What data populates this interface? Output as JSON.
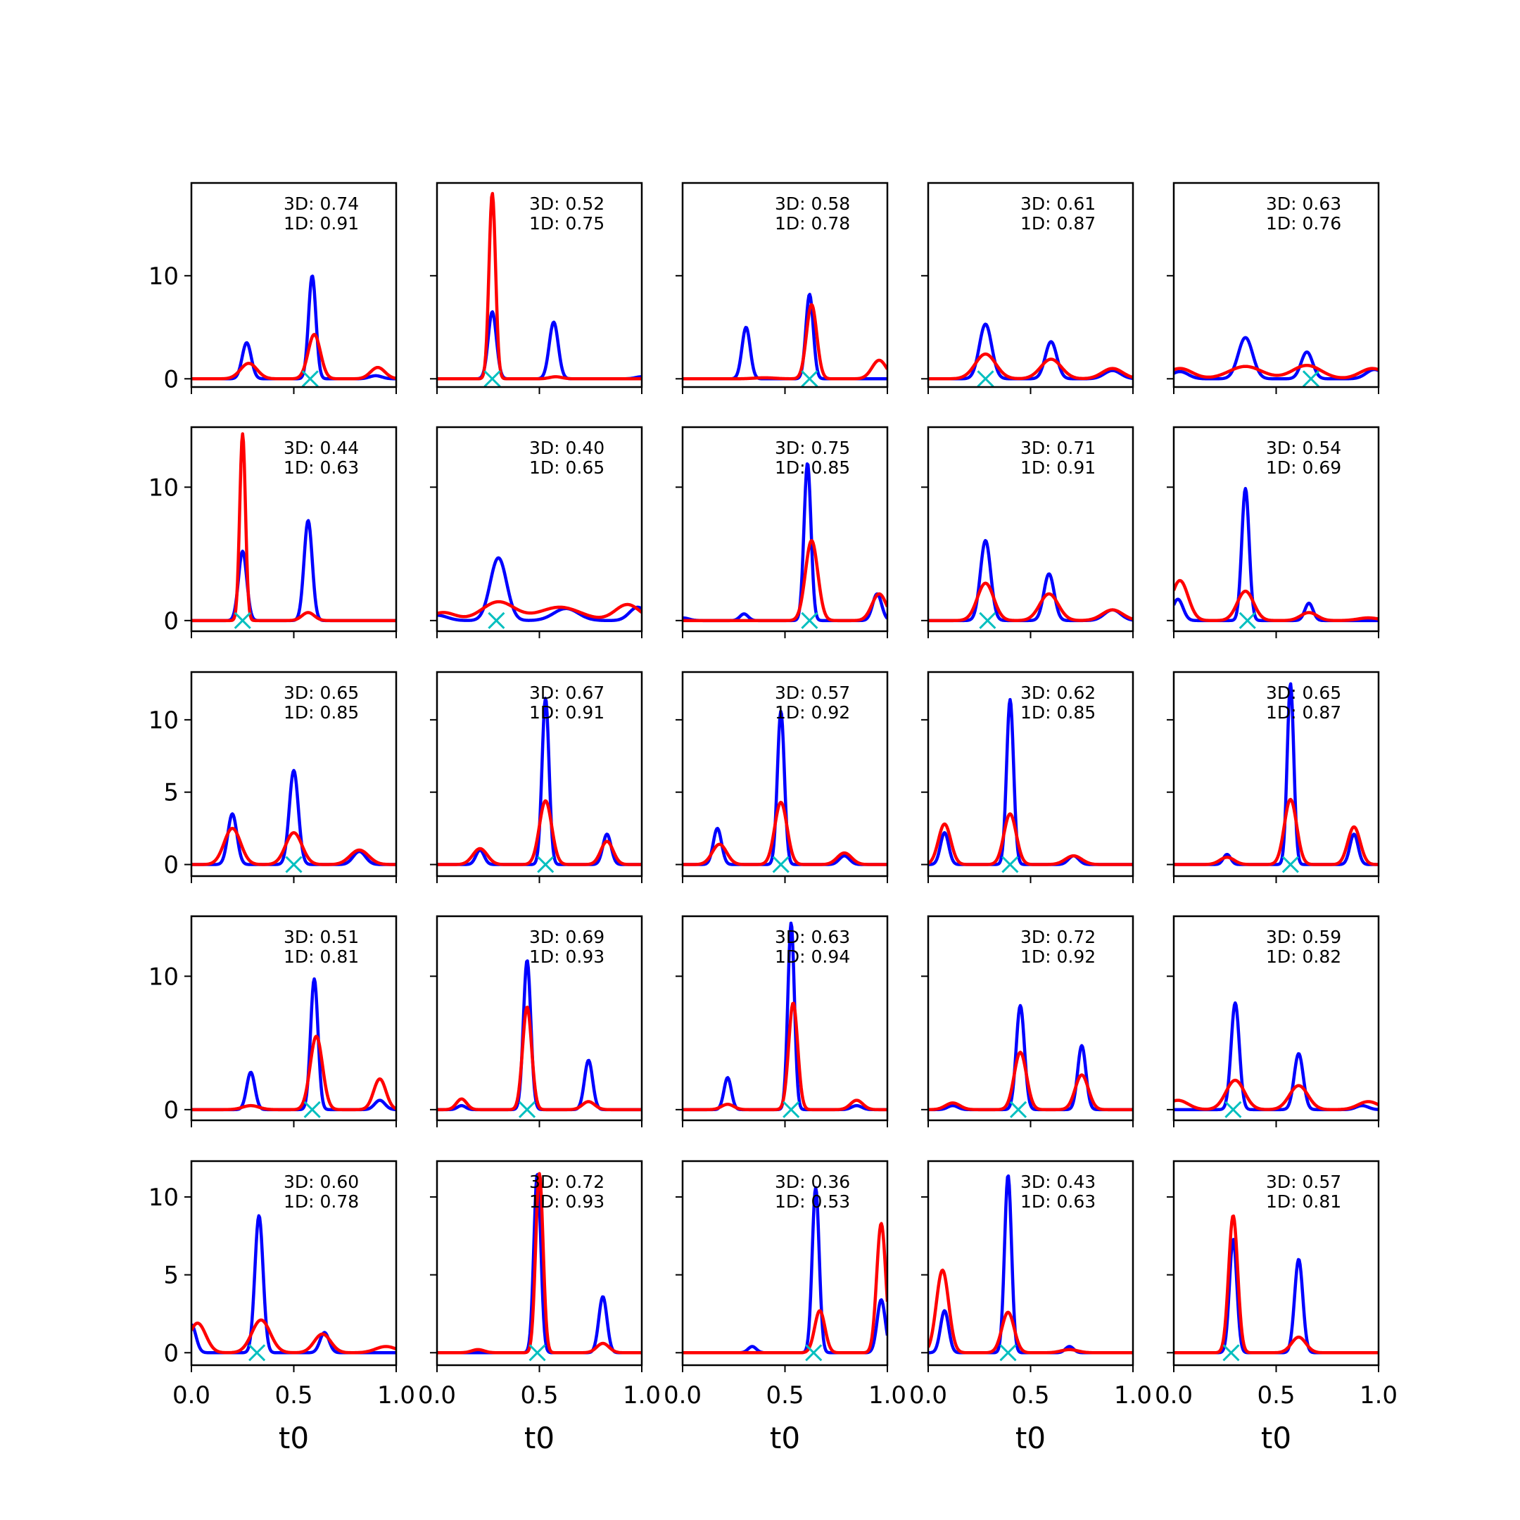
{
  "chart_data": {
    "type": "line",
    "layout": "5x5 grid of small multiples, shared x per column, shared y per row",
    "xlabel": "t0",
    "xlim": [
      0,
      1
    ],
    "xticks": [
      0.0,
      0.5,
      1.0
    ],
    "xtick_labels": [
      "0.0",
      "0.5",
      "1.0"
    ],
    "series_colors": {
      "blue": "#0000ff",
      "red": "#ff0000",
      "marker": "#00bfbf"
    },
    "rows": [
      {
        "ylim": [
          -0.8,
          19
        ],
        "yticks": [
          0,
          10
        ]
      },
      {
        "ylim": [
          -0.8,
          14.5
        ],
        "yticks": [
          0,
          10
        ]
      },
      {
        "ylim": [
          -0.8,
          13.3
        ],
        "yticks": [
          0,
          5,
          10
        ]
      },
      {
        "ylim": [
          -0.8,
          14.5
        ],
        "yticks": [
          0,
          10
        ]
      },
      {
        "ylim": [
          -0.8,
          12.3
        ],
        "yticks": [
          0,
          5,
          10
        ]
      }
    ],
    "panels": [
      {
        "label3d": "3D: 0.74",
        "label1d": "1D: 0.91",
        "marker_x": 0.58,
        "blue": [
          [
            0.27,
            3.5,
            0.022
          ],
          [
            0.59,
            10,
            0.018
          ],
          [
            0.9,
            0.3,
            0.03
          ]
        ],
        "red": [
          [
            0.28,
            1.5,
            0.04
          ],
          [
            0.6,
            4.3,
            0.03
          ],
          [
            0.91,
            1.1,
            0.035
          ]
        ]
      },
      {
        "label3d": "3D: 0.52",
        "label1d": "1D: 0.75",
        "marker_x": 0.27,
        "blue": [
          [
            0.27,
            6.5,
            0.02
          ],
          [
            0.57,
            5.5,
            0.022
          ],
          [
            1.0,
            0.2,
            0.03
          ]
        ],
        "red": [
          [
            0.27,
            18,
            0.016
          ],
          [
            0.58,
            0.2,
            0.03
          ]
        ]
      },
      {
        "label3d": "3D: 0.58",
        "label1d": "1D: 0.78",
        "marker_x": 0.62,
        "blue": [
          [
            0.31,
            5,
            0.02
          ],
          [
            0.62,
            8.2,
            0.018
          ]
        ],
        "red": [
          [
            0.63,
            7.2,
            0.025
          ],
          [
            0.96,
            1.8,
            0.035
          ],
          [
            0.4,
            0.1,
            0.05
          ]
        ]
      },
      {
        "label3d": "3D: 0.61",
        "label1d": "1D: 0.87",
        "marker_x": 0.28,
        "blue": [
          [
            0.28,
            5.3,
            0.03
          ],
          [
            0.6,
            3.6,
            0.028
          ],
          [
            0.9,
            0.8,
            0.04
          ]
        ],
        "red": [
          [
            0.28,
            2.4,
            0.05
          ],
          [
            0.6,
            1.9,
            0.05
          ],
          [
            0.9,
            1.0,
            0.05
          ]
        ]
      },
      {
        "label3d": "3D: 0.63",
        "label1d": "1D: 0.76",
        "marker_x": 0.67,
        "blue": [
          [
            0.35,
            4,
            0.035
          ],
          [
            0.65,
            2.6,
            0.028
          ],
          [
            0.98,
            0.9,
            0.04
          ],
          [
            0.03,
            0.7,
            0.04
          ]
        ],
        "red": [
          [
            0.03,
            1.0,
            0.06
          ],
          [
            0.35,
            1.2,
            0.08
          ],
          [
            0.65,
            1.3,
            0.07
          ],
          [
            0.97,
            1.0,
            0.06
          ]
        ]
      },
      {
        "label3d": "3D: 0.44",
        "label1d": "1D: 0.63",
        "marker_x": 0.25,
        "blue": [
          [
            0.25,
            5.2,
            0.02
          ],
          [
            0.57,
            7.5,
            0.02
          ]
        ],
        "red": [
          [
            0.25,
            14,
            0.014
          ],
          [
            0.57,
            0.6,
            0.03
          ]
        ]
      },
      {
        "label3d": "3D: 0.40",
        "label1d": "1D: 0.65",
        "marker_x": 0.29,
        "blue": [
          [
            0.3,
            4.7,
            0.04
          ],
          [
            0.63,
            0.9,
            0.06
          ],
          [
            0.98,
            1.0,
            0.04
          ],
          [
            0.0,
            0.4,
            0.05
          ]
        ],
        "red": [
          [
            0.03,
            0.6,
            0.06
          ],
          [
            0.3,
            1.4,
            0.08
          ],
          [
            0.6,
            1.0,
            0.1
          ],
          [
            0.93,
            1.2,
            0.06
          ]
        ]
      },
      {
        "label3d": "3D: 0.75",
        "label1d": "1D: 0.85",
        "marker_x": 0.62,
        "blue": [
          [
            0.61,
            11.8,
            0.017
          ],
          [
            0.3,
            0.5,
            0.02
          ],
          [
            0.95,
            2.0,
            0.022
          ],
          [
            0.0,
            0.2,
            0.03
          ]
        ],
        "red": [
          [
            0.63,
            6,
            0.03
          ],
          [
            0.96,
            2.0,
            0.035
          ]
        ]
      },
      {
        "label3d": "3D: 0.71",
        "label1d": "1D: 0.91",
        "marker_x": 0.29,
        "blue": [
          [
            0.28,
            6,
            0.025
          ],
          [
            0.59,
            3.5,
            0.025
          ],
          [
            0.9,
            0.8,
            0.04
          ]
        ],
        "red": [
          [
            0.28,
            2.8,
            0.04
          ],
          [
            0.59,
            2.0,
            0.045
          ],
          [
            0.9,
            0.8,
            0.05
          ]
        ]
      },
      {
        "label3d": "3D: 0.54",
        "label1d": "1D: 0.69",
        "marker_x": 0.36,
        "blue": [
          [
            0.35,
            9.9,
            0.018
          ],
          [
            0.66,
            1.3,
            0.02
          ],
          [
            0.02,
            1.6,
            0.025
          ]
        ],
        "red": [
          [
            0.03,
            3.0,
            0.04
          ],
          [
            0.35,
            2.2,
            0.04
          ],
          [
            0.66,
            0.6,
            0.04
          ],
          [
            0.95,
            0.2,
            0.05
          ]
        ]
      },
      {
        "label3d": "3D: 0.65",
        "label1d": "1D: 0.85",
        "marker_x": 0.5,
        "blue": [
          [
            0.2,
            3.5,
            0.022
          ],
          [
            0.5,
            6.5,
            0.022
          ],
          [
            0.82,
            0.9,
            0.03
          ]
        ],
        "red": [
          [
            0.2,
            2.5,
            0.04
          ],
          [
            0.5,
            2.2,
            0.04
          ],
          [
            0.82,
            1.0,
            0.045
          ]
        ]
      },
      {
        "label3d": "3D: 0.67",
        "label1d": "1D: 0.91",
        "marker_x": 0.53,
        "blue": [
          [
            0.53,
            11.5,
            0.017
          ],
          [
            0.21,
            1.0,
            0.02
          ],
          [
            0.83,
            2.1,
            0.02
          ]
        ],
        "red": [
          [
            0.21,
            1.1,
            0.035
          ],
          [
            0.53,
            4.4,
            0.03
          ],
          [
            0.83,
            1.6,
            0.03
          ]
        ]
      },
      {
        "label3d": "3D: 0.57",
        "label1d": "1D: 0.92",
        "marker_x": 0.48,
        "blue": [
          [
            0.48,
            10.6,
            0.017
          ],
          [
            0.17,
            2.5,
            0.02
          ],
          [
            0.79,
            0.6,
            0.025
          ]
        ],
        "red": [
          [
            0.18,
            1.4,
            0.035
          ],
          [
            0.48,
            4.3,
            0.03
          ],
          [
            0.79,
            0.8,
            0.035
          ]
        ]
      },
      {
        "label3d": "3D: 0.62",
        "label1d": "1D: 0.85",
        "marker_x": 0.4,
        "blue": [
          [
            0.4,
            11.4,
            0.017
          ],
          [
            0.08,
            2.2,
            0.02
          ],
          [
            0.71,
            0.6,
            0.025
          ]
        ],
        "red": [
          [
            0.08,
            2.8,
            0.03
          ],
          [
            0.4,
            3.5,
            0.03
          ],
          [
            0.71,
            0.6,
            0.04
          ]
        ]
      },
      {
        "label3d": "3D: 0.65",
        "label1d": "1D: 0.87",
        "marker_x": 0.57,
        "blue": [
          [
            0.57,
            12.5,
            0.016
          ],
          [
            0.26,
            0.7,
            0.018
          ],
          [
            0.88,
            2.1,
            0.02
          ]
        ],
        "red": [
          [
            0.26,
            0.5,
            0.035
          ],
          [
            0.57,
            4.5,
            0.03
          ],
          [
            0.88,
            2.6,
            0.03
          ]
        ]
      },
      {
        "label3d": "3D: 0.51",
        "label1d": "1D: 0.81",
        "marker_x": 0.59,
        "blue": [
          [
            0.29,
            2.8,
            0.02
          ],
          [
            0.6,
            9.8,
            0.018
          ],
          [
            0.92,
            0.7,
            0.025
          ]
        ],
        "red": [
          [
            0.29,
            0.3,
            0.04
          ],
          [
            0.61,
            5.5,
            0.03
          ],
          [
            0.92,
            2.3,
            0.03
          ]
        ]
      },
      {
        "label3d": "3D: 0.69",
        "label1d": "1D: 0.93",
        "marker_x": 0.44,
        "blue": [
          [
            0.44,
            11.2,
            0.018
          ],
          [
            0.74,
            3.7,
            0.02
          ],
          [
            0.12,
            0.3,
            0.02
          ]
        ],
        "red": [
          [
            0.12,
            0.8,
            0.025
          ],
          [
            0.44,
            7.7,
            0.022
          ],
          [
            0.74,
            0.6,
            0.03
          ]
        ]
      },
      {
        "label3d": "3D: 0.63",
        "label1d": "1D: 0.94",
        "marker_x": 0.53,
        "blue": [
          [
            0.53,
            14,
            0.016
          ],
          [
            0.22,
            2.4,
            0.018
          ],
          [
            0.85,
            0.3,
            0.025
          ]
        ],
        "red": [
          [
            0.22,
            0.4,
            0.03
          ],
          [
            0.54,
            8.0,
            0.022
          ],
          [
            0.85,
            0.7,
            0.03
          ]
        ]
      },
      {
        "label3d": "3D: 0.72",
        "label1d": "1D: 0.92",
        "marker_x": 0.44,
        "blue": [
          [
            0.45,
            7.8,
            0.02
          ],
          [
            0.75,
            4.8,
            0.02
          ],
          [
            0.12,
            0.3,
            0.025
          ]
        ],
        "red": [
          [
            0.12,
            0.5,
            0.035
          ],
          [
            0.45,
            4.3,
            0.03
          ],
          [
            0.75,
            2.6,
            0.032
          ]
        ]
      },
      {
        "label3d": "3D: 0.59",
        "label1d": "1D: 0.82",
        "marker_x": 0.29,
        "blue": [
          [
            0.3,
            8,
            0.02
          ],
          [
            0.61,
            4.2,
            0.022
          ],
          [
            0.92,
            0.3,
            0.03
          ]
        ],
        "red": [
          [
            0.02,
            0.7,
            0.05
          ],
          [
            0.3,
            2.2,
            0.045
          ],
          [
            0.61,
            1.8,
            0.045
          ],
          [
            0.95,
            0.6,
            0.05
          ]
        ]
      },
      {
        "label3d": "3D: 0.60",
        "label1d": "1D: 0.78",
        "marker_x": 0.32,
        "blue": [
          [
            0.33,
            8.8,
            0.02
          ],
          [
            0.65,
            1.3,
            0.022
          ],
          [
            0.0,
            1.8,
            0.022
          ]
        ],
        "red": [
          [
            0.03,
            1.9,
            0.04
          ],
          [
            0.34,
            2.1,
            0.045
          ],
          [
            0.64,
            1.2,
            0.04
          ],
          [
            0.95,
            0.4,
            0.05
          ]
        ]
      },
      {
        "label3d": "3D: 0.72",
        "label1d": "1D: 0.93",
        "marker_x": 0.49,
        "blue": [
          [
            0.49,
            11.5,
            0.017
          ],
          [
            0.81,
            3.6,
            0.02
          ]
        ],
        "red": [
          [
            0.5,
            11.5,
            0.018
          ],
          [
            0.2,
            0.2,
            0.03
          ],
          [
            0.81,
            0.6,
            0.03
          ]
        ]
      },
      {
        "label3d": "3D: 0.36",
        "label1d": "1D: 0.53",
        "marker_x": 0.64,
        "blue": [
          [
            0.65,
            10.6,
            0.017
          ],
          [
            0.34,
            0.4,
            0.02
          ],
          [
            0.97,
            3.4,
            0.02
          ]
        ],
        "red": [
          [
            0.67,
            2.7,
            0.025
          ],
          [
            0.97,
            8.3,
            0.022
          ]
        ]
      },
      {
        "label3d": "3D: 0.43",
        "label1d": "1D: 0.63",
        "marker_x": 0.39,
        "blue": [
          [
            0.39,
            11.4,
            0.017
          ],
          [
            0.08,
            2.7,
            0.02
          ],
          [
            0.69,
            0.4,
            0.02
          ]
        ],
        "red": [
          [
            0.07,
            5.3,
            0.03
          ],
          [
            0.39,
            2.6,
            0.03
          ],
          [
            0.69,
            0.2,
            0.04
          ]
        ]
      },
      {
        "label3d": "3D: 0.57",
        "label1d": "1D: 0.81",
        "marker_x": 0.28,
        "blue": [
          [
            0.29,
            7.3,
            0.018
          ],
          [
            0.61,
            6,
            0.02
          ]
        ],
        "red": [
          [
            0.29,
            8.8,
            0.022
          ],
          [
            0.61,
            1.0,
            0.035
          ]
        ]
      }
    ]
  }
}
